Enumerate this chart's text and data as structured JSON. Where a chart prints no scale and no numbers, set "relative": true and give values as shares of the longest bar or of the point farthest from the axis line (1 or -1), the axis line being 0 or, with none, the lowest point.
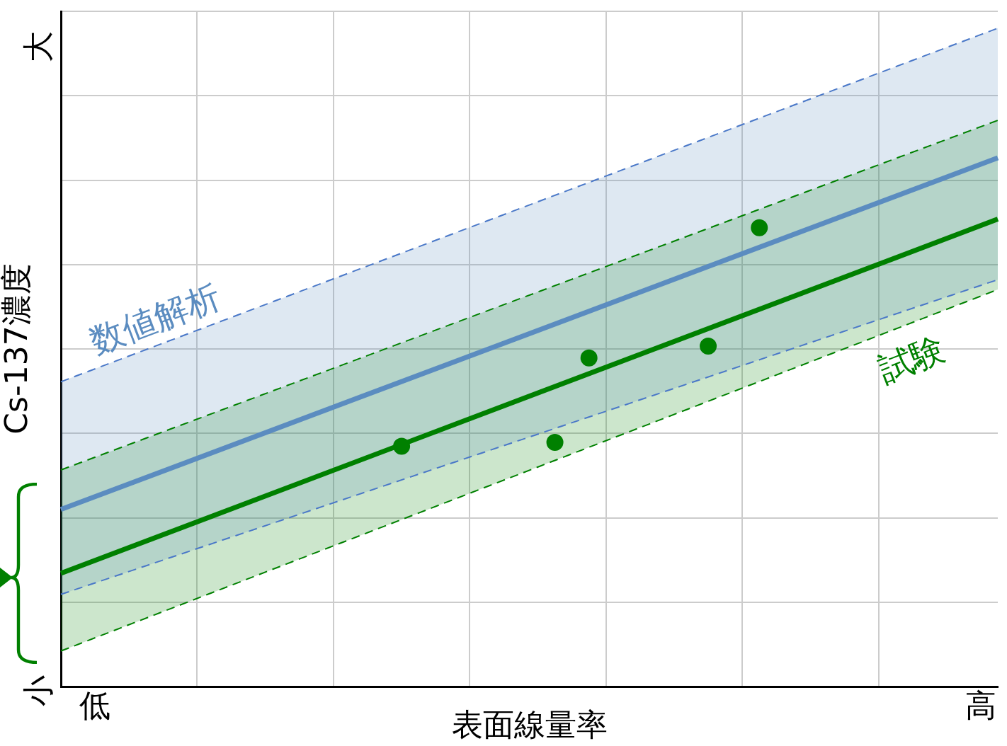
{
  "chart_data": {
    "type": "line",
    "relative": true,
    "xlabel": "表面線量率",
    "ylabel": "Cs-137濃度",
    "annotations": [
      "小",
      "大"
    ],
    "grid": true,
    "categories": [
      null,
      null,
      "低",
      null,
      null,
      null,
      null,
      null,
      null,
      null,
      null,
      null,
      null,
      null,
      null,
      null,
      null,
      null,
      null,
      null,
      null,
      null,
      null,
      null,
      null,
      null,
      null,
      null,
      null,
      null,
      null,
      null,
      null,
      null,
      null,
      null,
      null,
      null,
      null,
      null,
      null,
      null,
      null,
      null,
      null,
      null,
      null,
      null,
      null,
      null,
      null,
      null,
      null,
      null,
      "高",
      null
    ],
    "series": [
      {
        "name": "数値解析",
        "color": "#5b8cc0",
        "values": [
          0.269,
          null,
          null,
          null,
          null,
          null,
          null,
          null,
          null,
          null,
          null,
          null,
          null,
          null,
          null,
          null,
          null,
          null,
          null,
          null,
          null,
          null,
          null,
          null,
          null,
          null,
          null,
          null,
          null,
          null,
          null,
          null,
          null,
          null,
          null,
          null,
          null,
          null,
          null,
          null,
          null,
          null,
          null,
          null,
          null,
          null,
          null,
          null,
          null,
          null,
          null,
          null,
          null,
          null,
          null,
          0.803
        ],
        "lower": [
          0.14,
          null,
          null,
          null,
          null,
          null,
          null,
          null,
          null,
          null,
          null,
          null,
          null,
          null,
          null,
          null,
          null,
          null,
          null,
          null,
          null,
          null,
          null,
          null,
          null,
          null,
          null,
          null,
          null,
          null,
          null,
          null,
          null,
          null,
          null,
          null,
          null,
          null,
          null,
          null,
          null,
          null,
          null,
          null,
          null,
          null,
          null,
          null,
          null,
          null,
          null,
          null,
          null,
          null,
          null,
          0.618
        ],
        "upper": [
          0.463,
          null,
          null,
          null,
          null,
          null,
          null,
          null,
          null,
          null,
          null,
          null,
          null,
          null,
          null,
          null,
          null,
          null,
          null,
          null,
          null,
          null,
          null,
          null,
          null,
          null,
          null,
          null,
          null,
          null,
          null,
          null,
          null,
          null,
          null,
          null,
          null,
          null,
          null,
          null,
          null,
          null,
          null,
          null,
          null,
          null,
          null,
          null,
          null,
          null,
          null,
          null,
          null,
          null,
          null,
          1
        ]
      },
      {
        "name": "試験",
        "color": "#008000",
        "values": [
          0.172,
          null,
          null,
          null,
          null,
          null,
          null,
          null,
          null,
          null,
          null,
          null,
          null,
          null,
          null,
          null,
          null,
          null,
          null,
          null,
          null,
          null,
          null,
          null,
          null,
          null,
          null,
          null,
          null,
          null,
          null,
          null,
          null,
          null,
          null,
          null,
          null,
          null,
          null,
          null,
          null,
          null,
          null,
          null,
          null,
          null,
          null,
          null,
          null,
          null,
          null,
          null,
          null,
          null,
          null,
          0.71
        ],
        "lower": [
          0.054,
          null,
          null,
          null,
          null,
          null,
          null,
          null,
          null,
          null,
          null,
          null,
          null,
          null,
          null,
          null,
          null,
          null,
          null,
          null,
          null,
          null,
          null,
          null,
          null,
          null,
          null,
          null,
          null,
          null,
          null,
          null,
          null,
          null,
          null,
          null,
          null,
          null,
          null,
          null,
          null,
          null,
          null,
          null,
          null,
          null,
          null,
          null,
          null,
          null,
          null,
          null,
          null,
          null,
          null,
          0.603
        ],
        "upper": [
          0.329,
          null,
          null,
          null,
          null,
          null,
          null,
          null,
          null,
          null,
          null,
          null,
          null,
          null,
          null,
          null,
          null,
          null,
          null,
          null,
          null,
          null,
          null,
          null,
          null,
          null,
          null,
          null,
          null,
          null,
          null,
          null,
          null,
          null,
          null,
          null,
          null,
          null,
          null,
          null,
          null,
          null,
          null,
          null,
          null,
          null,
          null,
          null,
          null,
          null,
          null,
          null,
          null,
          null,
          null,
          0.86
        ]
      },
      {
        "color": "#4a78c8",
        "line_style": "dashed",
        "values": [
          0.14,
          null,
          null,
          null,
          null,
          null,
          null,
          null,
          null,
          null,
          null,
          null,
          null,
          null,
          null,
          null,
          null,
          null,
          null,
          null,
          null,
          null,
          null,
          null,
          null,
          null,
          null,
          null,
          null,
          null,
          null,
          null,
          null,
          null,
          null,
          null,
          null,
          null,
          null,
          null,
          null,
          null,
          null,
          null,
          null,
          null,
          null,
          null,
          null,
          null,
          null,
          null,
          null,
          null,
          null,
          0.618
        ]
      },
      {
        "color": "#4a78c8",
        "line_style": "dashed",
        "values": [
          0.463,
          null,
          null,
          null,
          null,
          null,
          null,
          null,
          null,
          null,
          null,
          null,
          null,
          null,
          null,
          null,
          null,
          null,
          null,
          null,
          null,
          null,
          null,
          null,
          null,
          null,
          null,
          null,
          null,
          null,
          null,
          null,
          null,
          null,
          null,
          null,
          null,
          null,
          null,
          null,
          null,
          null,
          null,
          null,
          null,
          null,
          null,
          null,
          null,
          null,
          null,
          null,
          null,
          null,
          null,
          1
        ]
      },
      {
        "color": "#008000",
        "line_style": "dashed",
        "values": [
          0.054,
          null,
          null,
          null,
          null,
          null,
          null,
          null,
          null,
          null,
          null,
          null,
          null,
          null,
          null,
          null,
          null,
          null,
          null,
          null,
          null,
          null,
          null,
          null,
          null,
          null,
          null,
          null,
          null,
          null,
          null,
          null,
          null,
          null,
          null,
          null,
          null,
          null,
          null,
          null,
          null,
          null,
          null,
          null,
          null,
          null,
          null,
          null,
          null,
          null,
          null,
          null,
          null,
          null,
          null,
          0.603
        ]
      },
      {
        "color": "#008000",
        "line_style": "dashed",
        "values": [
          0.329,
          null,
          null,
          null,
          null,
          null,
          null,
          null,
          null,
          null,
          null,
          null,
          null,
          null,
          null,
          null,
          null,
          null,
          null,
          null,
          null,
          null,
          null,
          null,
          null,
          null,
          null,
          null,
          null,
          null,
          null,
          null,
          null,
          null,
          null,
          null,
          null,
          null,
          null,
          null,
          null,
          null,
          null,
          null,
          null,
          null,
          null,
          null,
          null,
          null,
          null,
          null,
          null,
          null,
          null,
          0.86
        ]
      },
      {
        "type": "scatter",
        "color": "#008000",
        "marker": "circle",
        "values": [
          null,
          null,
          null,
          null,
          null,
          null,
          null,
          null,
          null,
          null,
          null,
          null,
          null,
          null,
          null,
          null,
          null,
          null,
          null,
          null,
          0.365,
          null,
          null,
          null,
          null,
          null,
          null,
          null,
          null,
          0.371,
          null,
          0.499,
          null,
          null,
          null,
          null,
          null,
          null,
          0.517,
          null,
          null,
          0.697,
          null,
          null,
          null,
          null,
          null,
          null,
          null,
          null,
          null,
          null,
          null,
          null,
          null,
          null
        ]
      }
    ]
  }
}
